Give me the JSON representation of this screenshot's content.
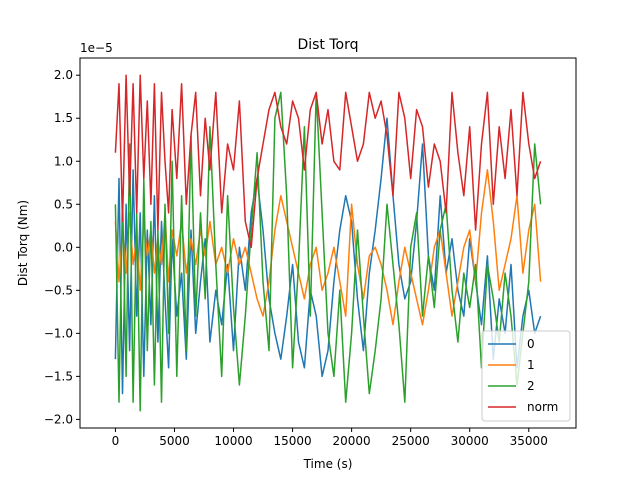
{
  "chart_data": {
    "type": "line",
    "title": "Dist Torq",
    "xlabel": "Time (s)",
    "ylabel": "Dist Torq (Nm)",
    "y_offset_label": "1e−5",
    "xlim": [
      -3000,
      39000
    ],
    "ylim": [
      -2.1,
      2.2
    ],
    "x_ticks": [
      0,
      5000,
      10000,
      15000,
      20000,
      25000,
      30000,
      35000
    ],
    "x_tick_labels": [
      "0",
      "5000",
      "10000",
      "15000",
      "20000",
      "25000",
      "30000",
      "35000"
    ],
    "y_ticks": [
      -2.0,
      -1.5,
      -1.0,
      -0.5,
      0.0,
      0.5,
      1.0,
      1.5,
      2.0
    ],
    "y_tick_labels": [
      "−2.0",
      "−1.5",
      "−1.0",
      "−0.5",
      "0.0",
      "0.5",
      "1.0",
      "1.5",
      "2.0"
    ],
    "grid": false,
    "legend_position": "lower-right",
    "series": [
      {
        "name": "0",
        "color": "#1f77b4",
        "x": [
          0,
          300,
          600,
          900,
          1200,
          1500,
          1800,
          2100,
          2400,
          2700,
          3000,
          3300,
          3600,
          3900,
          4200,
          4500,
          4800,
          5200,
          5600,
          6000,
          6400,
          6800,
          7200,
          7600,
          8000,
          8500,
          9000,
          9500,
          10000,
          10500,
          11000,
          11500,
          12000,
          12500,
          13000,
          13500,
          14000,
          14500,
          15000,
          15500,
          16000,
          16500,
          17000,
          17500,
          18000,
          18500,
          19000,
          19500,
          20000,
          20500,
          21000,
          21500,
          22000,
          22500,
          23000,
          23500,
          24000,
          24500,
          25000,
          25500,
          26000,
          26500,
          27000,
          27500,
          28000,
          28500,
          29000,
          29500,
          30000,
          30500,
          31000,
          31500,
          32000,
          32500,
          33000,
          33500,
          34000,
          34500,
          35000,
          35500,
          36000
        ],
        "y": [
          -1.3,
          0.8,
          -1.7,
          0.5,
          -1.2,
          0.9,
          -0.8,
          0.4,
          -1.5,
          0.2,
          -0.9,
          0.6,
          -1.1,
          0.3,
          -0.6,
          -1.4,
          0.1,
          -0.8,
          -0.3,
          -1.3,
          0.2,
          -1.0,
          -0.4,
          0.1,
          -1.1,
          -0.5,
          -0.9,
          -0.2,
          -1.2,
          0.0,
          -0.5,
          0.4,
          0.8,
          0.2,
          -0.6,
          -1.0,
          -1.3,
          -0.8,
          -0.2,
          -1.1,
          -1.4,
          -0.5,
          -0.8,
          -1.5,
          -1.2,
          -0.4,
          0.2,
          0.6,
          0.3,
          -0.6,
          -1.2,
          -0.3,
          0.2,
          0.8,
          1.5,
          0.6,
          -0.2,
          -0.6,
          -0.4,
          0.3,
          1.2,
          -0.1,
          -0.5,
          0.6,
          -0.3,
          0.1,
          -0.5,
          -0.8,
          0.1,
          -0.4,
          -0.9,
          -0.1,
          -1.3,
          -0.6,
          -1.0,
          -0.2,
          -1.4,
          -0.8,
          -0.5,
          -1.0,
          -0.8
        ]
      },
      {
        "name": "1",
        "color": "#ff7f0e",
        "x": [
          0,
          300,
          600,
          900,
          1200,
          1500,
          1800,
          2100,
          2400,
          2700,
          3000,
          3300,
          3600,
          3900,
          4200,
          4500,
          4800,
          5200,
          5600,
          6000,
          6400,
          6800,
          7200,
          7600,
          8000,
          8500,
          9000,
          9500,
          10000,
          10500,
          11000,
          11500,
          12000,
          12500,
          13000,
          13500,
          14000,
          14500,
          15000,
          15500,
          16000,
          16500,
          17000,
          17500,
          18000,
          18500,
          19000,
          19500,
          20000,
          20500,
          21000,
          21500,
          22000,
          22500,
          23000,
          23500,
          24000,
          24500,
          25000,
          25500,
          26000,
          26500,
          27000,
          27500,
          28000,
          28500,
          29000,
          29500,
          30000,
          30500,
          31000,
          31500,
          32000,
          32500,
          33000,
          33500,
          34000,
          34500,
          35000,
          35500,
          36000
        ],
        "y": [
          0.3,
          -0.4,
          0.2,
          -0.3,
          0.4,
          -0.2,
          0.1,
          -0.5,
          0.3,
          -0.1,
          0.2,
          -0.3,
          0.1,
          -0.2,
          0.4,
          -0.4,
          0.2,
          -0.1,
          0.3,
          -0.3,
          0.1,
          -0.2,
          0.2,
          -0.1,
          0.3,
          -0.2,
          0.0,
          -0.3,
          0.1,
          -0.2,
          0.0,
          -0.3,
          -0.6,
          -0.8,
          -0.4,
          0.2,
          0.6,
          0.3,
          0.0,
          -0.3,
          -0.6,
          -0.2,
          0.0,
          -0.5,
          -0.3,
          0.0,
          -0.4,
          -0.8,
          0.5,
          -0.2,
          -0.6,
          -0.1,
          0.0,
          -0.2,
          -0.5,
          -0.9,
          -0.4,
          0.0,
          -0.3,
          -0.6,
          -0.9,
          -0.5,
          0.0,
          0.2,
          -0.3,
          -0.8,
          -0.4,
          0.0,
          0.2,
          -0.4,
          0.4,
          0.9,
          0.3,
          -0.5,
          -0.2,
          0.1,
          0.6,
          -0.3,
          0.2,
          0.5,
          -0.4
        ]
      },
      {
        "name": "2",
        "color": "#2ca02c",
        "x": [
          0,
          300,
          600,
          900,
          1200,
          1500,
          1800,
          2100,
          2400,
          2700,
          3000,
          3300,
          3600,
          3900,
          4200,
          4500,
          4800,
          5200,
          5600,
          6000,
          6400,
          6800,
          7200,
          7600,
          8000,
          8500,
          9000,
          9500,
          10000,
          10500,
          11000,
          11500,
          12000,
          12500,
          13000,
          13500,
          14000,
          14500,
          15000,
          15500,
          16000,
          16500,
          17000,
          17500,
          18000,
          18500,
          19000,
          19500,
          20000,
          20500,
          21000,
          21500,
          22000,
          22500,
          23000,
          23500,
          24000,
          24500,
          25000,
          25500,
          26000,
          26500,
          27000,
          27500,
          28000,
          28500,
          29000,
          29500,
          30000,
          30500,
          31000,
          31500,
          32000,
          32500,
          33000,
          33500,
          34000,
          34500,
          35000,
          35500,
          36000
        ],
        "y": [
          0.5,
          -1.8,
          0.6,
          -1.5,
          1.2,
          -1.8,
          0.4,
          -1.9,
          0.8,
          -1.2,
          0.3,
          -1.6,
          0.2,
          -1.8,
          0.5,
          -1.0,
          1.0,
          -1.5,
          0.6,
          -1.2,
          1.3,
          -0.8,
          0.4,
          -0.6,
          1.4,
          -0.2,
          -1.5,
          0.6,
          -0.7,
          -1.6,
          -0.8,
          0.2,
          1.1,
          -0.4,
          -1.2,
          1.5,
          1.8,
          0.6,
          -1.4,
          -0.2,
          1.4,
          -0.8,
          1.8,
          0.4,
          -1.0,
          -1.5,
          -0.5,
          -1.8,
          -1.0,
          0.2,
          -0.8,
          -1.7,
          -1.2,
          -0.6,
          0.5,
          -0.2,
          -0.9,
          -1.8,
          0.0,
          0.4,
          -0.8,
          -0.1,
          -0.7,
          0.2,
          0.5,
          -0.5,
          -1.1,
          -0.3,
          -0.7,
          -0.2,
          -1.4,
          -0.2,
          -0.6,
          -1.1,
          -0.3,
          -0.8,
          -1.6,
          -1.0,
          -0.4,
          1.2,
          0.5
        ]
      },
      {
        "name": "norm",
        "color": "#d62728",
        "x": [
          0,
          300,
          600,
          900,
          1200,
          1500,
          1800,
          2100,
          2400,
          2700,
          3000,
          3300,
          3600,
          3900,
          4200,
          4500,
          4800,
          5200,
          5600,
          6000,
          6400,
          6800,
          7200,
          7600,
          8000,
          8500,
          9000,
          9500,
          10000,
          10500,
          11000,
          11500,
          12000,
          12500,
          13000,
          13500,
          14000,
          14500,
          15000,
          15500,
          16000,
          16500,
          17000,
          17500,
          18000,
          18500,
          19000,
          19500,
          20000,
          20500,
          21000,
          21500,
          22000,
          22500,
          23000,
          23500,
          24000,
          24500,
          25000,
          25500,
          26000,
          26500,
          27000,
          27500,
          28000,
          28500,
          29000,
          29500,
          30000,
          30500,
          31000,
          31500,
          32000,
          32500,
          33000,
          33500,
          34000,
          34500,
          35000,
          35500,
          36000
        ],
        "y": [
          1.1,
          1.9,
          0.3,
          2.0,
          0.6,
          1.9,
          0.4,
          2.0,
          0.8,
          1.7,
          0.5,
          1.9,
          0.2,
          1.8,
          1.0,
          0.4,
          1.6,
          0.8,
          1.9,
          0.5,
          1.3,
          1.8,
          0.6,
          1.5,
          0.9,
          1.8,
          0.4,
          1.2,
          0.9,
          1.7,
          0.3,
          0.0,
          0.8,
          1.2,
          1.6,
          1.8,
          1.4,
          1.2,
          1.7,
          1.5,
          0.9,
          1.6,
          1.8,
          1.2,
          1.6,
          1.0,
          0.9,
          1.8,
          1.4,
          1.0,
          1.2,
          1.8,
          1.5,
          1.7,
          1.3,
          0.6,
          1.8,
          1.5,
          0.8,
          1.6,
          1.4,
          0.7,
          1.2,
          1.0,
          0.4,
          1.8,
          1.1,
          0.6,
          1.4,
          0.2,
          1.2,
          1.8,
          0.5,
          1.4,
          0.8,
          1.6,
          0.6,
          1.8,
          1.2,
          0.8,
          1.0
        ]
      }
    ]
  }
}
